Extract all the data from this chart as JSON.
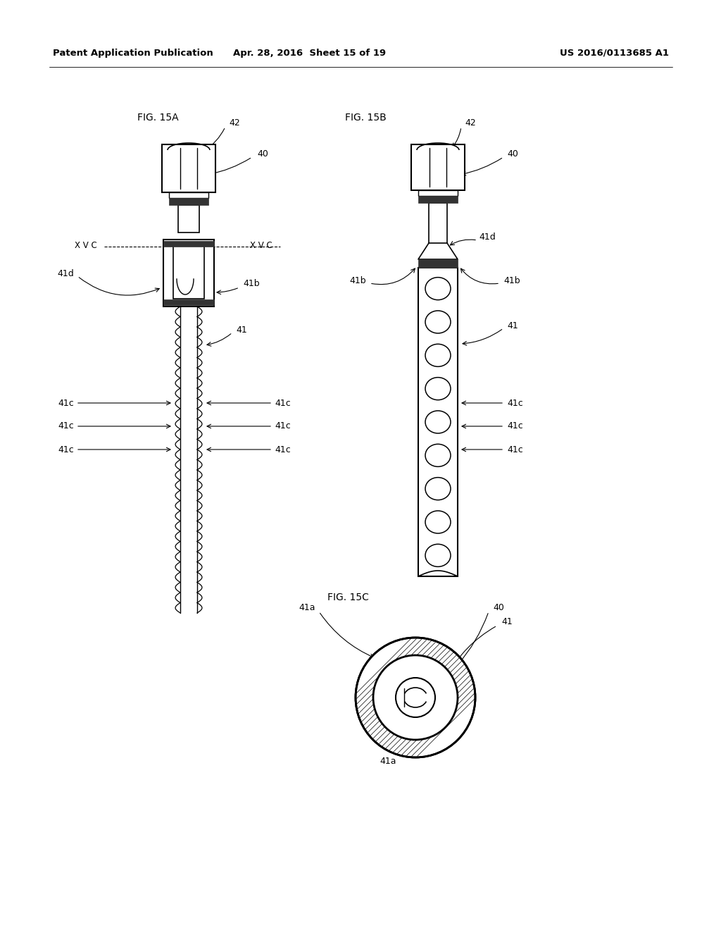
{
  "bg_color": "#ffffff",
  "header_left": "Patent Application Publication",
  "header_center": "Apr. 28, 2016  Sheet 15 of 19",
  "header_right": "US 2016/0113685 A1"
}
